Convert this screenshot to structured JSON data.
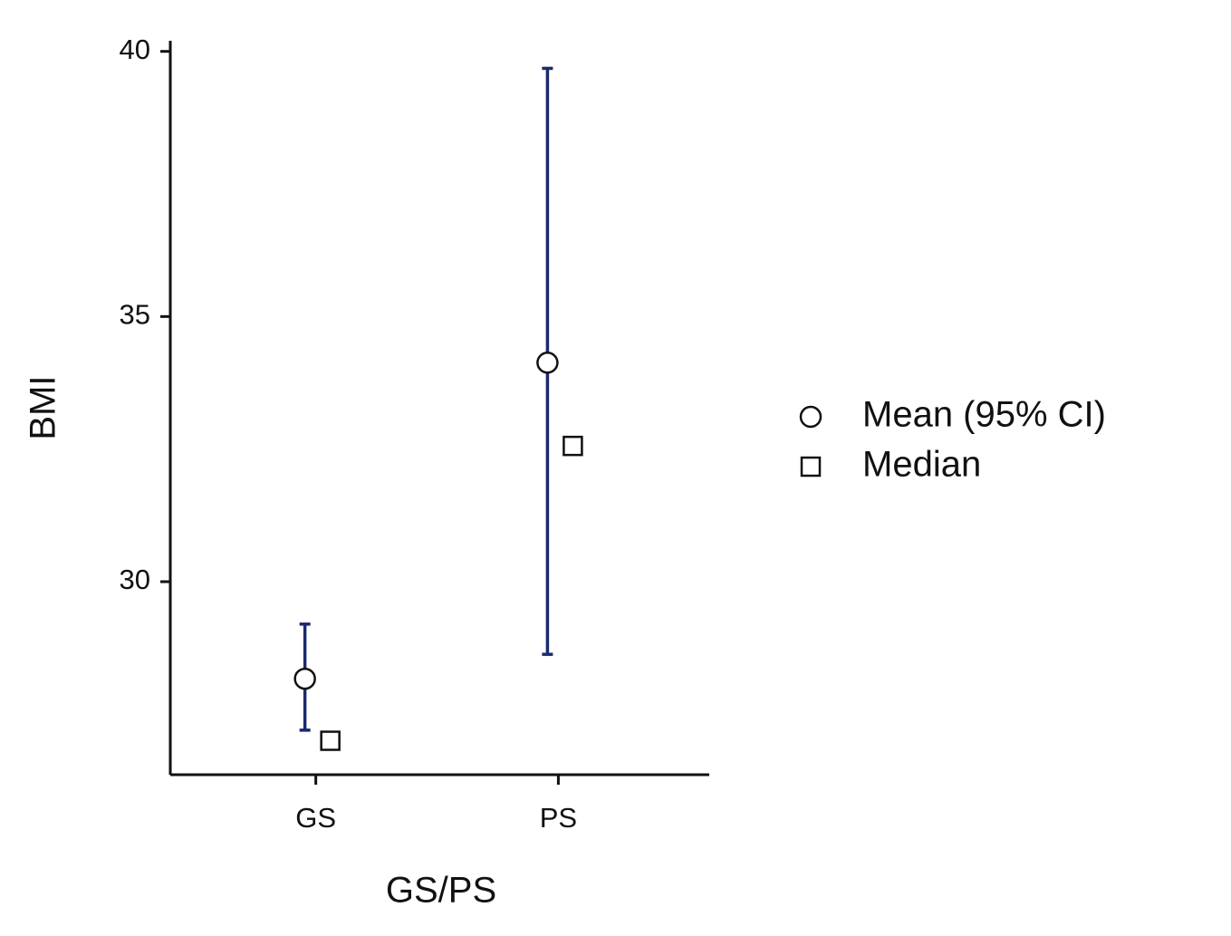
{
  "chart_data": {
    "type": "errorbar",
    "x_label": "GS/PS",
    "y_label": "BMI",
    "categories": [
      "GS",
      "PS"
    ],
    "series": [
      {
        "name": "Mean (95% CI)",
        "marker": "circle",
        "color": "#1a2a6c",
        "values": [
          28.17,
          34.13
        ],
        "ci_low": [
          27.2,
          28.63
        ],
        "ci_high": [
          29.2,
          39.68
        ]
      },
      {
        "name": "Median",
        "marker": "square",
        "color": "#000000",
        "values": [
          27.0,
          32.56
        ]
      }
    ],
    "ylim": [
      26.36,
      40.2
    ],
    "yticks": [
      30,
      35,
      40
    ],
    "grid": false,
    "legend": "right"
  }
}
